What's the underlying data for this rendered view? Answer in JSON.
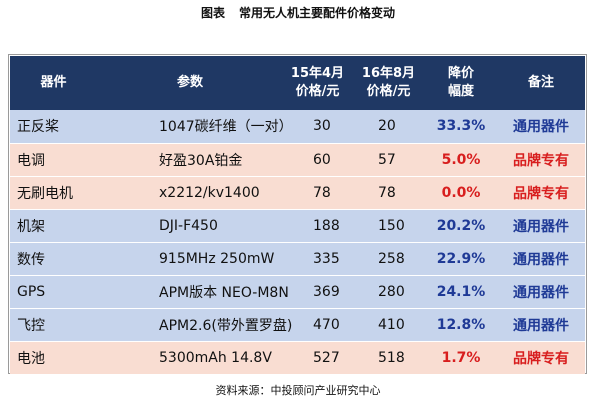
{
  "title": {
    "label": "图表",
    "text": "常用无人机主要配件价格变动"
  },
  "table": {
    "headers": {
      "device": "器件",
      "param": "参数",
      "price15_line1": "15年4月",
      "price15_line2": "价格/元",
      "price16_line1": "16年8月",
      "price16_line2": "价格/元",
      "rate_line1": "降价",
      "rate_line2": "幅度",
      "note": "备注"
    },
    "rows": [
      {
        "device": "正反桨",
        "param": "1047碳纤维（一对）",
        "price15": "30",
        "price16": "20",
        "rate": "33.3%",
        "note": "通用器件"
      },
      {
        "device": "电调",
        "param": "好盈30A铂金",
        "price15": "60",
        "price16": "57",
        "rate": "5.0%",
        "note": "品牌专有"
      },
      {
        "device": "无刷电机",
        "param": "x2212/kv1400",
        "price15": "78",
        "price16": "78",
        "rate": "0.0%",
        "note": "品牌专有"
      },
      {
        "device": "机架",
        "param": "DJI-F450",
        "price15": "188",
        "price16": "150",
        "rate": "20.2%",
        "note": "通用器件"
      },
      {
        "device": "数传",
        "param": "915MHz 250mW",
        "price15": "335",
        "price16": "258",
        "rate": "22.9%",
        "note": "通用器件"
      },
      {
        "device": "GPS",
        "param": "APM版本 NEO-M8N",
        "price15": "369",
        "price16": "280",
        "rate": "24.1%",
        "note": "通用器件"
      },
      {
        "device": "飞控",
        "param": "APM2.6(带外置罗盘)",
        "price15": "470",
        "price16": "410",
        "rate": "12.8%",
        "note": "通用器件"
      },
      {
        "device": "电池",
        "param": "5300mAh 14.8V",
        "price15": "527",
        "price16": "518",
        "rate": "1.7%",
        "note": "品牌专有"
      }
    ]
  },
  "source": "资料来源：中投顾问产业研究中心",
  "colors": {
    "header_bg": "#1f3864",
    "row_blue": "#c6d4ec",
    "row_pink": "#f9ddd2",
    "text_blue": "#1f3a96",
    "text_red": "#d81e1e"
  }
}
